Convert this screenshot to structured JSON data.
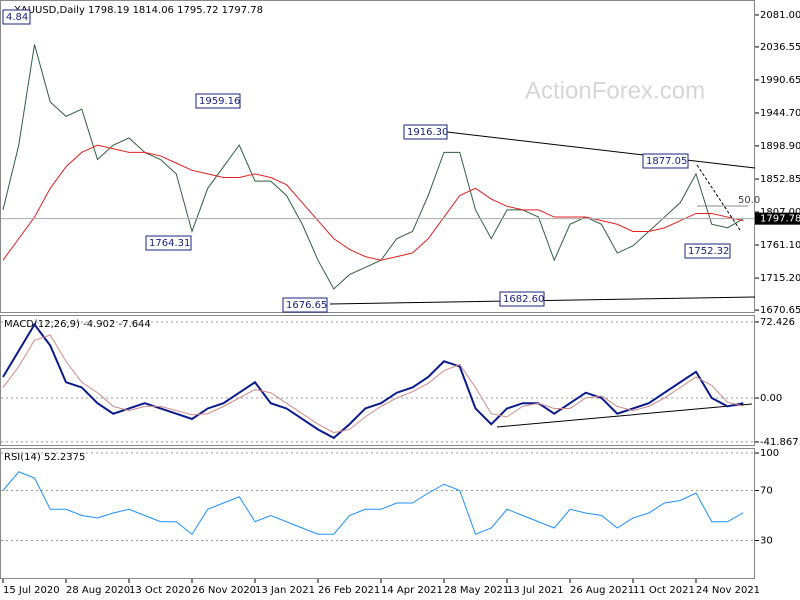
{
  "chart_data": [
    {
      "type": "line",
      "title": "XAUUSD,Daily  1798.19 1814.06 1795.72 1797.78",
      "watermark": "ActionForex.com",
      "ylim": [
        1668,
        2100.4
      ],
      "yticks": [
        {
          "value": 2081,
          "label": "2081.00"
        },
        {
          "value": 2036.55,
          "label": "2036.55"
        },
        {
          "value": 1990.65,
          "label": "1990.65"
        },
        {
          "value": 1944.7,
          "label": "1944.70"
        },
        {
          "value": 1898.9,
          "label": "1898.90"
        },
        {
          "value": 1852.85,
          "label": "1852.85"
        },
        {
          "value": 1807,
          "label": "1807.00"
        },
        {
          "value": 1761.1,
          "label": "1761.10"
        },
        {
          "value": 1715.2,
          "label": "1715.20"
        },
        {
          "value": 1670.65,
          "label": "1670.65"
        }
      ],
      "last_price": 1797.78,
      "annotations": [
        "4.84",
        "1959.16",
        "1764.31",
        "1916.30",
        "1877.05",
        "1752.32",
        "1676.65",
        "1682.60",
        "50.0"
      ],
      "series": [
        {
          "name": "XAUUSD",
          "color": "#2f5f3f",
          "values": [
            1810,
            1900,
            2040,
            1960,
            1940,
            1950,
            1880,
            1900,
            1910,
            1890,
            1880,
            1860,
            1780,
            1840,
            1870,
            1900,
            1850,
            1850,
            1830,
            1790,
            1740,
            1700,
            1720,
            1730,
            1740,
            1770,
            1780,
            1830,
            1890,
            1890,
            1810,
            1770,
            1810,
            1810,
            1800,
            1740,
            1790,
            1800,
            1790,
            1750,
            1760,
            1780,
            1800,
            1820,
            1860,
            1790,
            1785,
            1797.78
          ]
        },
        {
          "name": "MA",
          "color": "#e02020",
          "values": [
            1740,
            1770,
            1800,
            1840,
            1870,
            1890,
            1900,
            1895,
            1890,
            1890,
            1885,
            1875,
            1865,
            1860,
            1855,
            1855,
            1860,
            1855,
            1845,
            1820,
            1795,
            1770,
            1755,
            1745,
            1740,
            1745,
            1750,
            1770,
            1800,
            1830,
            1840,
            1825,
            1815,
            1810,
            1810,
            1800,
            1800,
            1800,
            1795,
            1790,
            1780,
            1780,
            1785,
            1795,
            1805,
            1805,
            1800,
            1795
          ]
        }
      ]
    },
    {
      "type": "line",
      "title": "MACD(12,26,9) -4.902 -7.644",
      "ylim": [
        -44.8,
        78.1
      ],
      "yticks": [
        72.426,
        {
          "value": 0,
          "label": "0.00"
        },
        -41.867
      ],
      "series": [
        {
          "name": "MACD",
          "color": "#0a1a8c",
          "values": [
            20,
            45,
            70,
            50,
            15,
            10,
            -5,
            -15,
            -10,
            -5,
            -10,
            -15,
            -20,
            -10,
            -5,
            5,
            15,
            -5,
            -10,
            -20,
            -30,
            -38,
            -25,
            -10,
            -5,
            5,
            10,
            20,
            35,
            30,
            -10,
            -25,
            -10,
            -5,
            -5,
            -15,
            -5,
            5,
            0,
            -15,
            -10,
            -5,
            5,
            15,
            25,
            0,
            -8,
            -5
          ]
        },
        {
          "name": "Signal",
          "color": "#d08a8a",
          "values": [
            10,
            30,
            55,
            60,
            35,
            15,
            5,
            -8,
            -12,
            -8,
            -8,
            -12,
            -16,
            -15,
            -8,
            0,
            8,
            5,
            -5,
            -15,
            -25,
            -33,
            -30,
            -18,
            -8,
            0,
            6,
            14,
            26,
            32,
            10,
            -15,
            -18,
            -8,
            -5,
            -10,
            -10,
            0,
            2,
            -8,
            -12,
            -8,
            0,
            10,
            20,
            12,
            -4,
            -7.644
          ]
        }
      ]
    },
    {
      "type": "line",
      "title": "RSI(14) 52.2375",
      "ylim": [
        0,
        103.2
      ],
      "yticks": [
        100,
        70,
        30
      ],
      "categories": [
        "15 Jul 2020",
        null,
        null,
        null,
        "28 Aug 2020",
        null,
        null,
        null,
        "13 Oct 2020",
        null,
        null,
        null,
        "26 Nov 2020",
        null,
        null,
        null,
        "13 Jan 2021",
        null,
        null,
        null,
        "26 Feb 2021",
        null,
        null,
        null,
        "14 Apr 2021",
        null,
        null,
        null,
        "28 May 2021",
        null,
        null,
        null,
        "13 Jul 2021",
        null,
        null,
        null,
        "26 Aug 2021",
        null,
        null,
        null,
        "11 Oct 2021",
        null,
        null,
        null,
        "24 Nov 2021",
        null,
        null,
        null
      ],
      "series": [
        {
          "name": "RSI",
          "color": "#1e90ff",
          "values": [
            70,
            85,
            80,
            55,
            55,
            50,
            48,
            52,
            55,
            50,
            45,
            45,
            35,
            55,
            60,
            65,
            45,
            50,
            45,
            40,
            35,
            35,
            50,
            55,
            55,
            60,
            60,
            68,
            75,
            70,
            35,
            40,
            55,
            50,
            45,
            40,
            55,
            52,
            50,
            40,
            48,
            52,
            60,
            62,
            68,
            45,
            45,
            52.2375
          ]
        }
      ]
    }
  ]
}
